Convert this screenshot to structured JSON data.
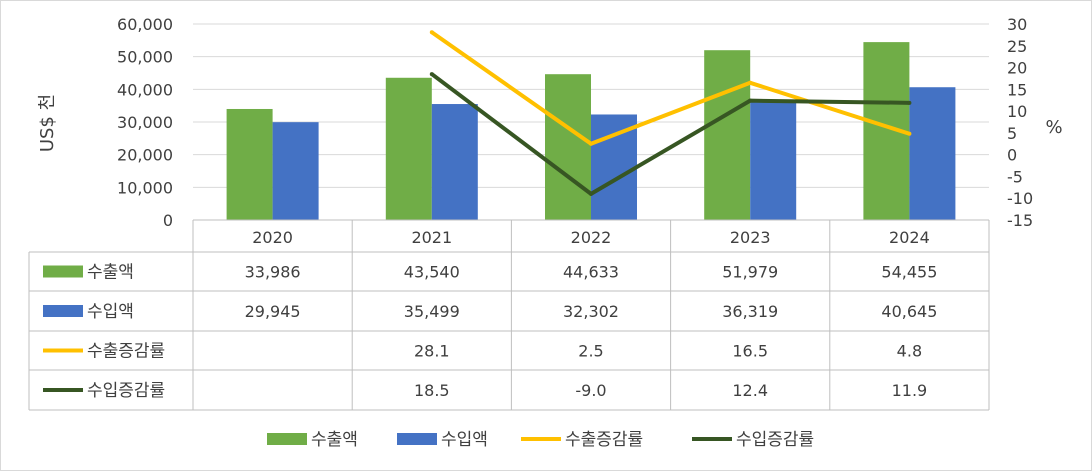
{
  "chart_data": {
    "type": "bar",
    "categories": [
      "2020",
      "2021",
      "2022",
      "2023",
      "2024"
    ],
    "series": [
      {
        "name": "수출액",
        "kind": "bar",
        "axis": "left",
        "color": "#70ad47",
        "values": [
          33986,
          43540,
          44633,
          51979,
          54455
        ]
      },
      {
        "name": "수입액",
        "kind": "bar",
        "axis": "left",
        "color": "#4472c4",
        "values": [
          29945,
          35499,
          32302,
          36319,
          40645
        ]
      },
      {
        "name": "수출증감률",
        "kind": "line",
        "axis": "right",
        "color": "#ffc000",
        "values": [
          null,
          28.1,
          2.5,
          16.5,
          4.8
        ]
      },
      {
        "name": "수입증감률",
        "kind": "line",
        "axis": "right",
        "color": "#375623",
        "values": [
          null,
          18.5,
          -9.0,
          12.4,
          11.9
        ]
      }
    ],
    "table_values": [
      [
        "33,986",
        "43,540",
        "44,633",
        "51,979",
        "54,455"
      ],
      [
        "29,945",
        "35,499",
        "32,302",
        "36,319",
        "40,645"
      ],
      [
        "",
        "28.1",
        "2.5",
        "16.5",
        "4.8"
      ],
      [
        "",
        "18.5",
        "-9.0",
        "12.4",
        "11.9"
      ]
    ],
    "ylabel": "US$ 천",
    "y2label": "%",
    "ylim": [
      0,
      60000
    ],
    "y2lim": [
      -15,
      30
    ],
    "yticks": [
      "0",
      "10,000",
      "20,000",
      "30,000",
      "40,000",
      "50,000",
      "60,000"
    ],
    "y2ticks": [
      "-15",
      "-10",
      "-5",
      "0",
      "5",
      "10",
      "15",
      "20",
      "25",
      "30"
    ],
    "legend_position": "bottom",
    "grid": true
  }
}
